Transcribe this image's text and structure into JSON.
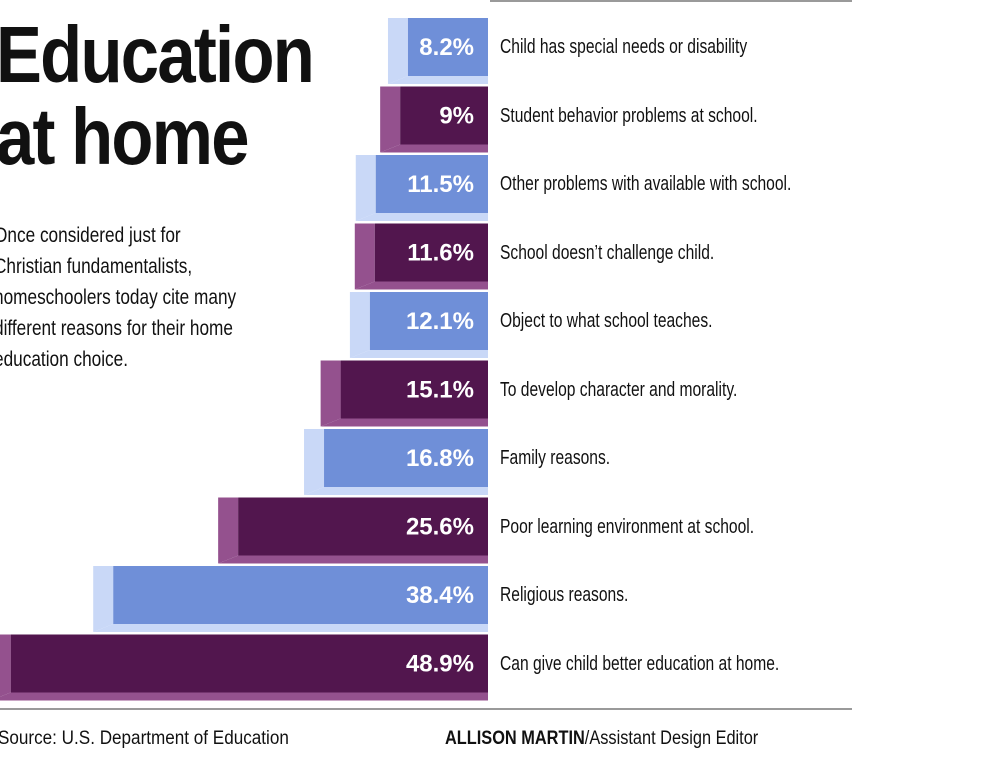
{
  "title_lines": [
    "Education",
    "at home"
  ],
  "subtitle": "Once considered just for Christian fundamentalists, homeschoolers today cite many different reasons for their home education choice.",
  "footer": {
    "source": "Source: U.S. Department of Education",
    "credit_name": "ALLISON MARTIN",
    "credit_role": "/Assistant Design Editor"
  },
  "colors": {
    "light_front": "#6f8fd8",
    "light_side": "#c9d8f7",
    "dark_front": "#52164e",
    "dark_side": "#94518e"
  },
  "chart_data": {
    "type": "bar",
    "orientation": "horizontal",
    "categories": [
      "Child has special needs or disability",
      "Student behavior problems at school.",
      "Other problems with available with school.",
      "School doesn’t challenge child.",
      "Object to what school teaches.",
      "To develop character and morality.",
      "Family reasons.",
      "Poor learning environment at school.",
      "Religious reasons.",
      "Can give child better education at home."
    ],
    "values": [
      8.2,
      9,
      11.5,
      11.6,
      12.1,
      15.1,
      16.8,
      25.6,
      38.4,
      48.9
    ],
    "value_labels": [
      "8.2%",
      "9%",
      "11.5%",
      "11.6%",
      "12.1%",
      "15.1%",
      "16.8%",
      "25.6%",
      "38.4%",
      "48.9%"
    ],
    "unit": "%",
    "grid": false,
    "legend": "none"
  }
}
